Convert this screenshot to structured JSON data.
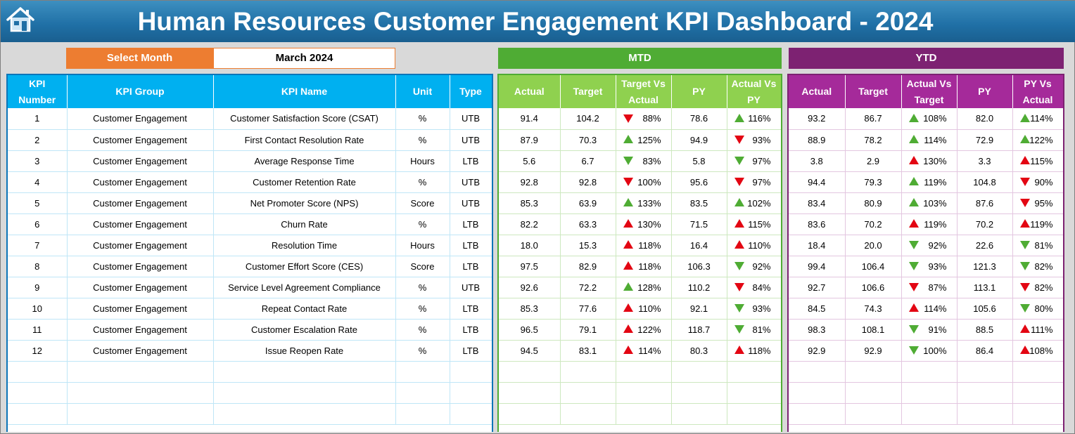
{
  "header": {
    "title": "Human Resources Customer Engagement KPI Dashboard - 2024",
    "home_icon": "home-icon"
  },
  "month_selector": {
    "label": "Select Month",
    "value": "March 2024"
  },
  "sections": {
    "mtd": "MTD",
    "ytd": "YTD"
  },
  "kpi_columns": [
    "KPI Number",
    "KPI Group",
    "KPI Name",
    "Unit",
    "Type"
  ],
  "mtd_columns": [
    "Actual",
    "Target",
    "Target Vs Actual",
    "PY",
    "Actual Vs PY"
  ],
  "ytd_columns": [
    "Actual",
    "Target",
    "Actual Vs Target",
    "PY",
    "PY Vs Actual"
  ],
  "colors": {
    "up_good": "#4fac34",
    "alert": "#e30613",
    "kpi_header": "#00b0f0",
    "mtd_header": "#8fd14f",
    "ytd_header": "#a52a9a",
    "month_label": "#ed7d31"
  },
  "rows": [
    {
      "num": "1",
      "group": "Customer Engagement",
      "name": "Customer Satisfaction Score (CSAT)",
      "unit": "%",
      "type": "UTB",
      "mtd": {
        "actual": "91.4",
        "target": "104.2",
        "tva": "88%",
        "tva_icon": "down-red",
        "py": "78.6",
        "avp": "116%",
        "avp_icon": "up-green"
      },
      "ytd": {
        "actual": "93.2",
        "target": "86.7",
        "avt": "108%",
        "avt_icon": "up-green",
        "py": "82.0",
        "pva": "114%",
        "pva_icon": "up-green"
      }
    },
    {
      "num": "2",
      "group": "Customer Engagement",
      "name": "First Contact Resolution Rate",
      "unit": "%",
      "type": "UTB",
      "mtd": {
        "actual": "87.9",
        "target": "70.3",
        "tva": "125%",
        "tva_icon": "up-green",
        "py": "94.9",
        "avp": "93%",
        "avp_icon": "down-red"
      },
      "ytd": {
        "actual": "88.9",
        "target": "78.2",
        "avt": "114%",
        "avt_icon": "up-green",
        "py": "72.9",
        "pva": "122%",
        "pva_icon": "up-green"
      }
    },
    {
      "num": "3",
      "group": "Customer Engagement",
      "name": "Average Response Time",
      "unit": "Hours",
      "type": "LTB",
      "mtd": {
        "actual": "5.6",
        "target": "6.7",
        "tva": "83%",
        "tva_icon": "down-green",
        "py": "5.8",
        "avp": "97%",
        "avp_icon": "down-green"
      },
      "ytd": {
        "actual": "3.8",
        "target": "2.9",
        "avt": "130%",
        "avt_icon": "up-red",
        "py": "3.3",
        "pva": "115%",
        "pva_icon": "up-red"
      }
    },
    {
      "num": "4",
      "group": "Customer Engagement",
      "name": "Customer Retention Rate",
      "unit": "%",
      "type": "UTB",
      "mtd": {
        "actual": "92.8",
        "target": "92.8",
        "tva": "100%",
        "tva_icon": "down-red",
        "py": "95.6",
        "avp": "97%",
        "avp_icon": "down-red"
      },
      "ytd": {
        "actual": "94.4",
        "target": "79.3",
        "avt": "119%",
        "avt_icon": "up-green",
        "py": "104.8",
        "pva": "90%",
        "pva_icon": "down-red"
      }
    },
    {
      "num": "5",
      "group": "Customer Engagement",
      "name": "Net Promoter Score (NPS)",
      "unit": "Score",
      "type": "UTB",
      "mtd": {
        "actual": "85.3",
        "target": "63.9",
        "tva": "133%",
        "tva_icon": "up-green",
        "py": "83.5",
        "avp": "102%",
        "avp_icon": "up-green"
      },
      "ytd": {
        "actual": "83.4",
        "target": "80.9",
        "avt": "103%",
        "avt_icon": "up-green",
        "py": "87.6",
        "pva": "95%",
        "pva_icon": "down-red"
      }
    },
    {
      "num": "6",
      "group": "Customer Engagement",
      "name": "Churn Rate",
      "unit": "%",
      "type": "LTB",
      "mtd": {
        "actual": "82.2",
        "target": "63.3",
        "tva": "130%",
        "tva_icon": "up-red",
        "py": "71.5",
        "avp": "115%",
        "avp_icon": "up-red"
      },
      "ytd": {
        "actual": "83.6",
        "target": "70.2",
        "avt": "119%",
        "avt_icon": "up-red",
        "py": "70.2",
        "pva": "119%",
        "pva_icon": "up-red"
      }
    },
    {
      "num": "7",
      "group": "Customer Engagement",
      "name": "Resolution Time",
      "unit": "Hours",
      "type": "LTB",
      "mtd": {
        "actual": "18.0",
        "target": "15.3",
        "tva": "118%",
        "tva_icon": "up-red",
        "py": "16.4",
        "avp": "110%",
        "avp_icon": "up-red"
      },
      "ytd": {
        "actual": "18.4",
        "target": "20.0",
        "avt": "92%",
        "avt_icon": "down-green",
        "py": "22.6",
        "pva": "81%",
        "pva_icon": "down-green"
      }
    },
    {
      "num": "8",
      "group": "Customer Engagement",
      "name": "Customer Effort Score (CES)",
      "unit": "Score",
      "type": "LTB",
      "mtd": {
        "actual": "97.5",
        "target": "82.9",
        "tva": "118%",
        "tva_icon": "up-red",
        "py": "106.3",
        "avp": "92%",
        "avp_icon": "down-green"
      },
      "ytd": {
        "actual": "99.4",
        "target": "106.4",
        "avt": "93%",
        "avt_icon": "down-green",
        "py": "121.3",
        "pva": "82%",
        "pva_icon": "down-green"
      }
    },
    {
      "num": "9",
      "group": "Customer Engagement",
      "name": "Service Level Agreement Compliance",
      "unit": "%",
      "type": "UTB",
      "mtd": {
        "actual": "92.6",
        "target": "72.2",
        "tva": "128%",
        "tva_icon": "up-green",
        "py": "110.2",
        "avp": "84%",
        "avp_icon": "down-red"
      },
      "ytd": {
        "actual": "92.7",
        "target": "106.6",
        "avt": "87%",
        "avt_icon": "down-red",
        "py": "113.1",
        "pva": "82%",
        "pva_icon": "down-red"
      }
    },
    {
      "num": "10",
      "group": "Customer Engagement",
      "name": "Repeat Contact Rate",
      "unit": "%",
      "type": "LTB",
      "mtd": {
        "actual": "85.3",
        "target": "77.6",
        "tva": "110%",
        "tva_icon": "up-red",
        "py": "92.1",
        "avp": "93%",
        "avp_icon": "down-green"
      },
      "ytd": {
        "actual": "84.5",
        "target": "74.3",
        "avt": "114%",
        "avt_icon": "up-red",
        "py": "105.6",
        "pva": "80%",
        "pva_icon": "down-green"
      }
    },
    {
      "num": "11",
      "group": "Customer Engagement",
      "name": "Customer Escalation Rate",
      "unit": "%",
      "type": "LTB",
      "mtd": {
        "actual": "96.5",
        "target": "79.1",
        "tva": "122%",
        "tva_icon": "up-red",
        "py": "118.7",
        "avp": "81%",
        "avp_icon": "down-green"
      },
      "ytd": {
        "actual": "98.3",
        "target": "108.1",
        "avt": "91%",
        "avt_icon": "down-green",
        "py": "88.5",
        "pva": "111%",
        "pva_icon": "up-red"
      }
    },
    {
      "num": "12",
      "group": "Customer Engagement",
      "name": "Issue Reopen Rate",
      "unit": "%",
      "type": "LTB",
      "mtd": {
        "actual": "94.5",
        "target": "83.1",
        "tva": "114%",
        "tva_icon": "up-red",
        "py": "80.3",
        "avp": "118%",
        "avp_icon": "up-red"
      },
      "ytd": {
        "actual": "92.9",
        "target": "92.9",
        "avt": "100%",
        "avt_icon": "down-green",
        "py": "86.4",
        "pva": "108%",
        "pva_icon": "up-red"
      }
    }
  ]
}
